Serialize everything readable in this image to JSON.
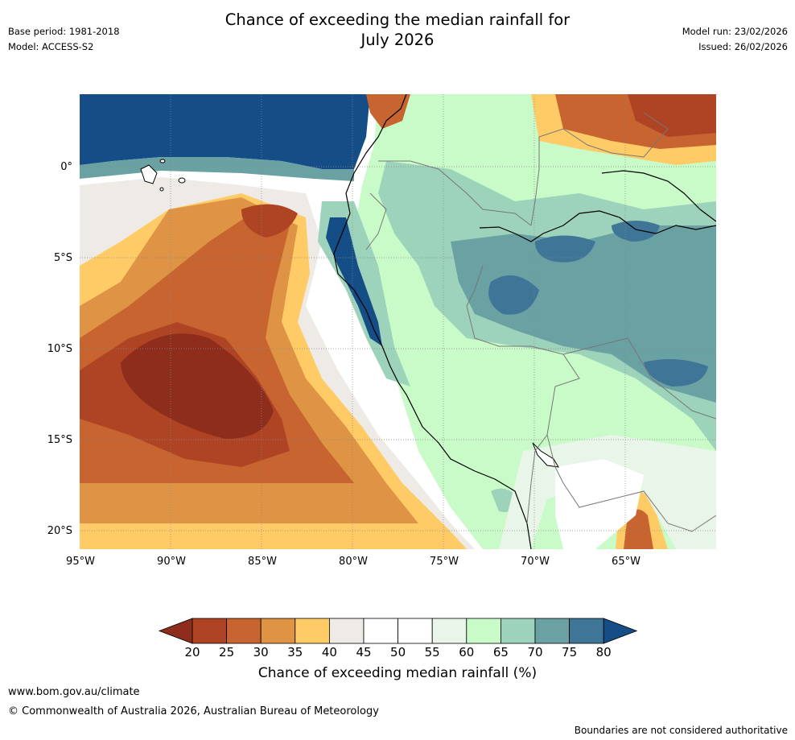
{
  "header": {
    "title_line1": "Chance of exceeding the median rainfall for",
    "title_line2": "July 2026",
    "base_period": "Base period: 1981-2018",
    "model": "Model: ACCESS-S2",
    "model_run": "Model run: 23/02/2026",
    "issued": "Issued: 26/02/2026"
  },
  "map": {
    "region": "Western South America and eastern Pacific",
    "lat_labels": [
      "0°",
      "5°S",
      "10°S",
      "15°S",
      "20°S"
    ],
    "lon_labels": [
      "95°W",
      "90°W",
      "85°W",
      "80°W",
      "75°W",
      "70°W",
      "65°W"
    ]
  },
  "colorbar": {
    "label": "Chance of exceeding median rainfall (%)",
    "ticks": [
      "20",
      "25",
      "30",
      "35",
      "40",
      "45",
      "50",
      "55",
      "60",
      "65",
      "70",
      "75",
      "80"
    ],
    "colors": [
      "#8e2d1c",
      "#ae4424",
      "#c7642f",
      "#df9445",
      "#fecb66",
      "#eeeae6",
      "#ffffff",
      "#ffffff",
      "#e8f5e8",
      "#c8fbc8",
      "#9dd3bb",
      "#6aa1a3",
      "#3f7596",
      "#154d86"
    ],
    "below_color": "#8e2d1c",
    "above_color": "#154d86"
  },
  "footer": {
    "url": "www.bom.gov.au/climate",
    "copyright": "© Commonwealth of Australia 2026, Australian Bureau of Meteorology",
    "disclaimer": "Boundaries are not considered authoritative"
  }
}
